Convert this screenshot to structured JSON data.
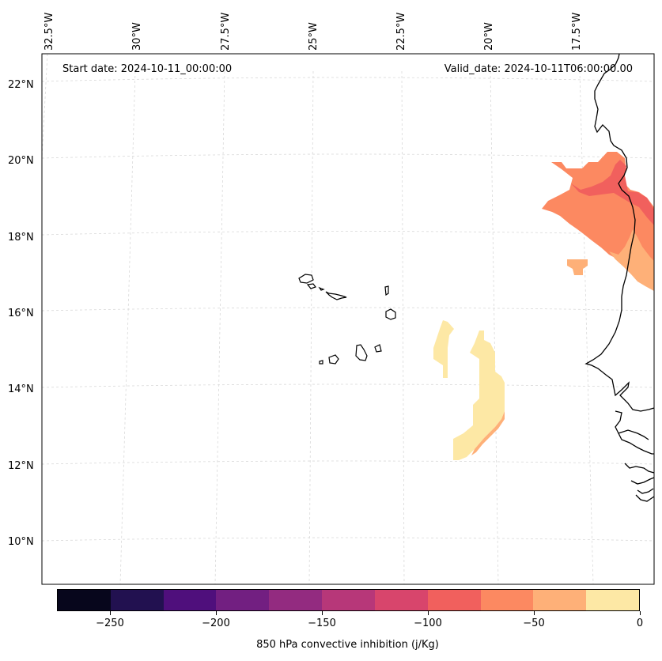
{
  "header": {
    "start_date": "Start date: 2024-10-11_00:00:00",
    "valid_date": "Valid_date: 2024-10-11T06:00:00.00"
  },
  "map": {
    "lon_labels": [
      "32.5°W",
      "30°W",
      "27.5°W",
      "25°W",
      "22.5°W",
      "20°W",
      "17.5°W"
    ],
    "lat_labels": [
      "22°N",
      "20°N",
      "18°N",
      "16°N",
      "14°N",
      "12°N",
      "10°N"
    ],
    "features": [
      "Cape Verde Islands",
      "West African coastline"
    ],
    "cin_fields": [
      {
        "region": "Mauritania coast",
        "levels": [
          -100,
          -75,
          -50,
          -25
        ]
      },
      {
        "region": "South of Cape Verde",
        "levels": [
          -25,
          -50
        ]
      }
    ]
  },
  "colorbar": {
    "label": "850 hPa convective inhibition (j/Kg)",
    "ticks": [
      "−250",
      "−200",
      "−150",
      "−100",
      "−50",
      "0"
    ],
    "min": -275,
    "max": 0,
    "step": 25,
    "colors": [
      "#07061c",
      "#221150",
      "#4f0f7c",
      "#721f81",
      "#932b80",
      "#b73779",
      "#d8456c",
      "#f1605d",
      "#fc8961",
      "#feb078",
      "#fde8a5"
    ]
  }
}
